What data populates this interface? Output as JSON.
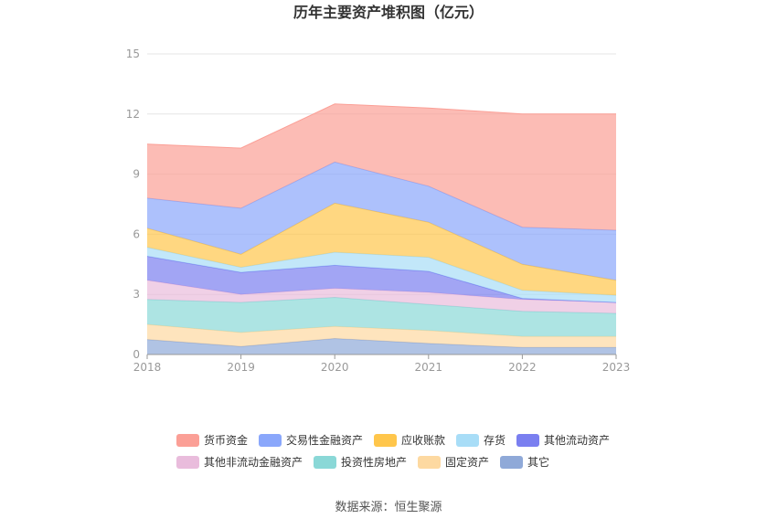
{
  "chart_data": {
    "type": "area",
    "stacked": true,
    "title": "历年主要资产堆积图（亿元）",
    "x": [
      "2018",
      "2019",
      "2020",
      "2021",
      "2022",
      "2023"
    ],
    "ylim": [
      0,
      15
    ],
    "yticks": [
      "0",
      "3",
      "6",
      "9",
      "12",
      "15"
    ],
    "grid": true,
    "legend_position": "bottom",
    "series": [
      {
        "name": "其它",
        "color": "#8fa9d8",
        "values": [
          0.75,
          0.4,
          0.8,
          0.55,
          0.35,
          0.35
        ]
      },
      {
        "name": "固定资产",
        "color": "#fdd9a1",
        "values": [
          0.75,
          0.7,
          0.6,
          0.65,
          0.55,
          0.55
        ]
      },
      {
        "name": "投资性房地产",
        "color": "#8ad8d7",
        "values": [
          1.25,
          1.5,
          1.45,
          1.3,
          1.25,
          1.15
        ]
      },
      {
        "name": "其他非流动金融资产",
        "color": "#e9bcdc",
        "values": [
          0.95,
          0.4,
          0.45,
          0.6,
          0.6,
          0.55
        ]
      },
      {
        "name": "其他流动资产",
        "color": "#7a7ff0",
        "values": [
          1.2,
          1.1,
          1.15,
          1.05,
          0.05,
          0.0
        ]
      },
      {
        "name": "存货",
        "color": "#a8ddf7",
        "values": [
          0.45,
          0.25,
          0.65,
          0.7,
          0.4,
          0.35
        ]
      },
      {
        "name": "应收账款",
        "color": "#ffc64b",
        "values": [
          0.95,
          0.65,
          2.45,
          1.75,
          1.3,
          0.75
        ]
      },
      {
        "name": "交易性金融资产",
        "color": "#8aa7fb",
        "values": [
          1.5,
          2.3,
          2.05,
          1.8,
          1.85,
          2.5
        ]
      },
      {
        "name": "货币资金",
        "color": "#fb9f96",
        "values": [
          2.7,
          3.0,
          2.9,
          3.9,
          5.65,
          5.8
        ]
      }
    ],
    "legend": [
      [
        "货币资金",
        "交易性金融资产",
        "应收账款",
        "存货",
        "其他流动资产"
      ],
      [
        "其他非流动金融资产",
        "投资性房地产",
        "固定资产",
        "其它"
      ]
    ]
  },
  "source": "数据来源：恒生聚源"
}
